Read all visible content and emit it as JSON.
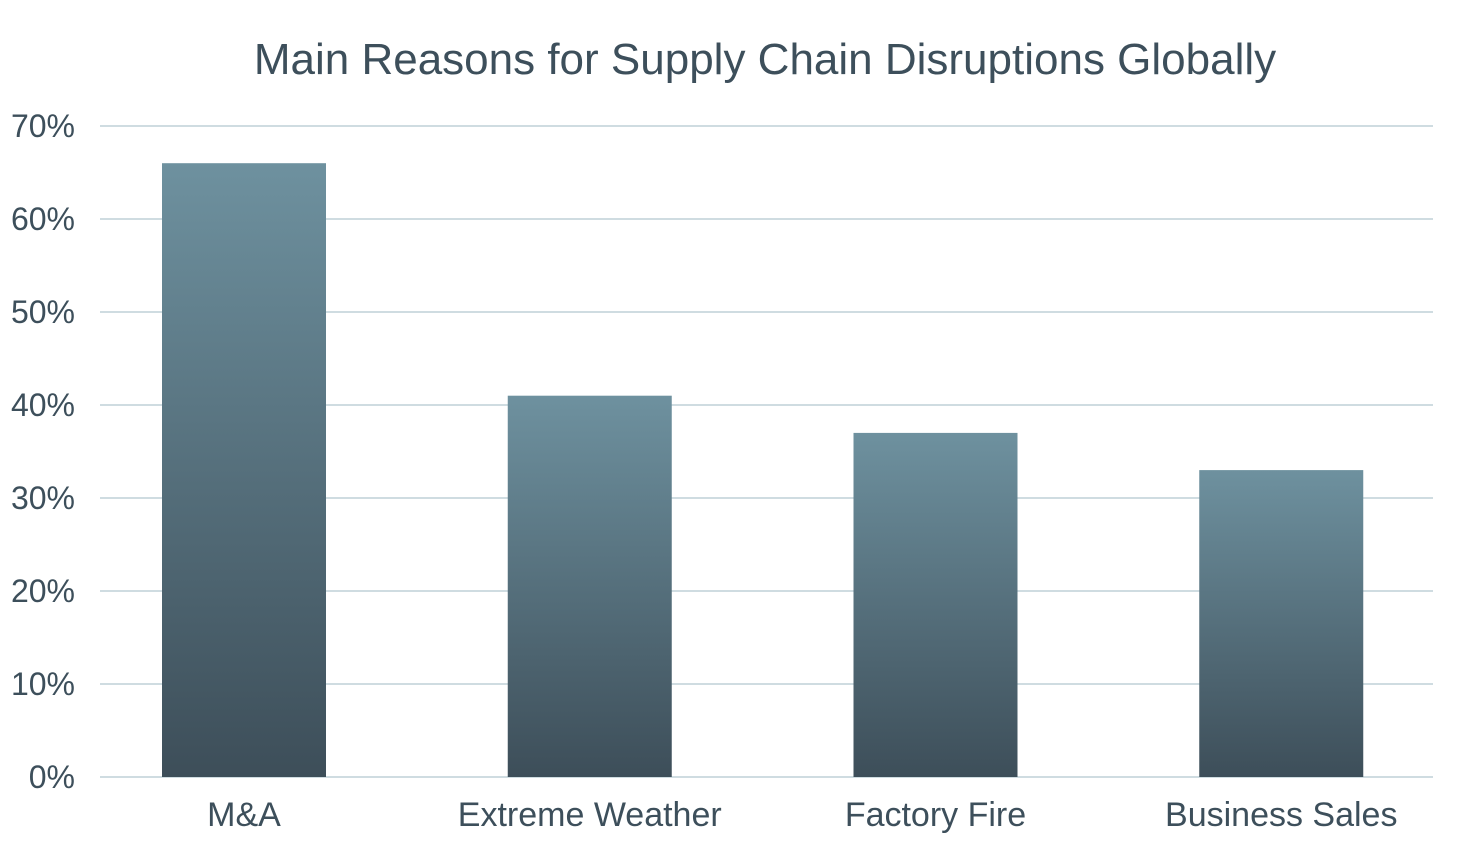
{
  "chart_data": {
    "type": "bar",
    "title": "Main Reasons for Supply Chain Disruptions Globally",
    "xlabel": "",
    "ylabel": "",
    "categories": [
      "M&A",
      "Extreme Weather",
      "Factory Fire",
      "Business Sales"
    ],
    "values": [
      66,
      41,
      37,
      33
    ],
    "ylim": [
      0,
      70
    ],
    "yticks": [
      0,
      10,
      20,
      30,
      40,
      50,
      60,
      70
    ],
    "ytick_labels": [
      "0%",
      "10%",
      "20%",
      "30%",
      "40%",
      "50%",
      "60%",
      "70%"
    ],
    "grid": true,
    "legend": "none",
    "colors": {
      "bar_top": "#6e919f",
      "bar_bottom": "#3d4e59",
      "grid": "#cfdce1",
      "text": "#3d4f5b"
    }
  }
}
